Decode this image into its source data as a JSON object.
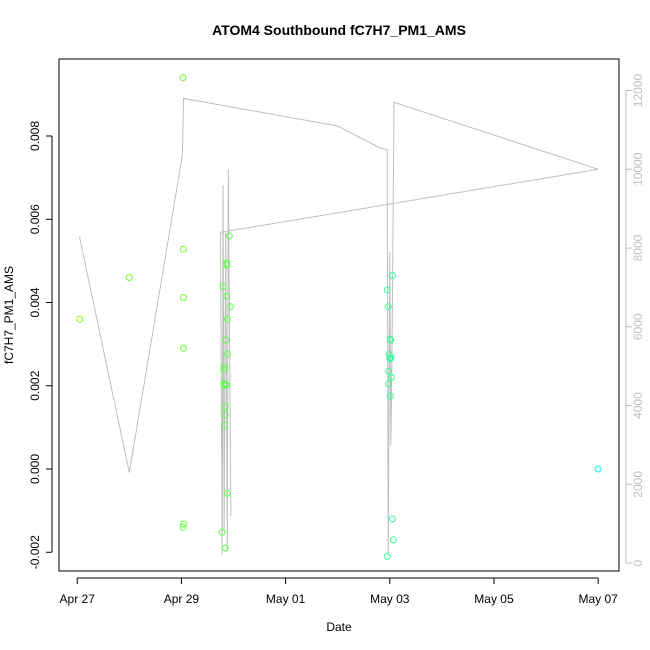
{
  "chart_data": {
    "type": "scatter",
    "title": "ATOM4 Southbound fC7H7_PM1_AMS",
    "xlabel": "Date",
    "ylabel": "fC7H7_PM1_AMS",
    "x_ticks": [
      "Apr 27",
      "Apr 29",
      "May 01",
      "May 03",
      "May 05",
      "May 07"
    ],
    "x_tick_days": [
      0,
      2,
      4,
      6,
      8,
      10
    ],
    "xlim_days": [
      -0.35,
      10.4
    ],
    "y_ticks": [
      -0.002,
      0.0,
      0.002,
      0.004,
      0.006,
      0.008
    ],
    "y_tick_labels": [
      "-0.002",
      "0.000",
      "0.002",
      "0.004",
      "0.006",
      "0.008"
    ],
    "ylim": [
      -0.00245,
      0.00985
    ],
    "y2_ticks": [
      0,
      2000,
      4000,
      6000,
      8000,
      10000,
      12000
    ],
    "y2_tick_labels": [
      "0",
      "2000",
      "4000",
      "6000",
      "8000",
      "10000",
      "12000"
    ],
    "y2lim": [
      -200,
      12800
    ],
    "line_color": "#bebebe",
    "series": [
      {
        "color_start": "#7fff00",
        "color_end": "#00ffff",
        "points": [
          {
            "x": 0.05,
            "y": 0.0036
          },
          {
            "x": 1.0,
            "y": 0.0046
          },
          {
            "x": 2.03,
            "y": 0.0094
          },
          {
            "x": 2.04,
            "y": 0.00528
          },
          {
            "x": 2.04,
            "y": 0.00412
          },
          {
            "x": 2.04,
            "y": 0.0029
          },
          {
            "x": 2.04,
            "y": -0.00132
          },
          {
            "x": 2.03,
            "y": -0.0014
          },
          {
            "x": 2.78,
            "y": -0.00152
          },
          {
            "x": 2.8,
            "y": 0.00438
          },
          {
            "x": 2.82,
            "y": 0.00245
          },
          {
            "x": 2.82,
            "y": 0.00238
          },
          {
            "x": 2.82,
            "y": 0.00205
          },
          {
            "x": 2.82,
            "y": 0.00203
          },
          {
            "x": 2.83,
            "y": 0.00202
          },
          {
            "x": 2.84,
            "y": 0.0015
          },
          {
            "x": 2.84,
            "y": 0.0013
          },
          {
            "x": 2.83,
            "y": 0.00105
          },
          {
            "x": 2.84,
            "y": -0.0019
          },
          {
            "x": 2.85,
            "y": 0.0031
          },
          {
            "x": 2.86,
            "y": 0.00202
          },
          {
            "x": 2.87,
            "y": 0.00495
          },
          {
            "x": 2.87,
            "y": 0.0049
          },
          {
            "x": 2.87,
            "y": 0.00415
          },
          {
            "x": 2.88,
            "y": 0.0036
          },
          {
            "x": 2.88,
            "y": 0.00277
          },
          {
            "x": 2.88,
            "y": -0.00058
          },
          {
            "x": 2.92,
            "y": 0.0056
          },
          {
            "x": 2.94,
            "y": 0.0039
          },
          {
            "x": 5.95,
            "y": -0.0021
          },
          {
            "x": 5.95,
            "y": 0.0043
          },
          {
            "x": 5.97,
            "y": 0.0039
          },
          {
            "x": 5.98,
            "y": 0.00235
          },
          {
            "x": 5.98,
            "y": 0.00205
          },
          {
            "x": 5.99,
            "y": 0.00275
          },
          {
            "x": 6.0,
            "y": 0.00265
          },
          {
            "x": 6.01,
            "y": 0.00312
          },
          {
            "x": 6.01,
            "y": 0.00265
          },
          {
            "x": 6.01,
            "y": 0.00175
          },
          {
            "x": 6.02,
            "y": 0.0031
          },
          {
            "x": 6.02,
            "y": 0.00268
          },
          {
            "x": 6.03,
            "y": 0.0022
          },
          {
            "x": 6.05,
            "y": 0.00465
          },
          {
            "x": 6.05,
            "y": -0.0012
          },
          {
            "x": 6.07,
            "y": -0.0017
          },
          {
            "x": 10.0,
            "y": 0.0
          }
        ]
      }
    ],
    "line_series": [
      {
        "x": 0.05,
        "y": 8300
      },
      {
        "x": 0.05,
        "y": 8250
      },
      {
        "x": 1.0,
        "y": 2300
      },
      {
        "x": 2.0,
        "y": 10200
      },
      {
        "x": 2.02,
        "y": 10450
      },
      {
        "x": 2.04,
        "y": 11800
      },
      {
        "x": 5.0,
        "y": 11100
      },
      {
        "x": 5.8,
        "y": 10550
      },
      {
        "x": 5.95,
        "y": 10500
      },
      {
        "x": 5.97,
        "y": 200
      },
      {
        "x": 6.0,
        "y": 7900
      },
      {
        "x": 6.02,
        "y": 3000
      },
      {
        "x": 6.04,
        "y": 5000
      },
      {
        "x": 6.08,
        "y": 11700
      },
      {
        "x": 10.0,
        "y": 10000
      },
      {
        "x": 2.75,
        "y": 8400
      },
      {
        "x": 2.78,
        "y": 200
      },
      {
        "x": 2.8,
        "y": 9600
      },
      {
        "x": 2.82,
        "y": 800
      },
      {
        "x": 2.85,
        "y": 8400
      },
      {
        "x": 2.88,
        "y": 300
      },
      {
        "x": 2.9,
        "y": 10000
      },
      {
        "x": 2.95,
        "y": 1200
      }
    ]
  }
}
